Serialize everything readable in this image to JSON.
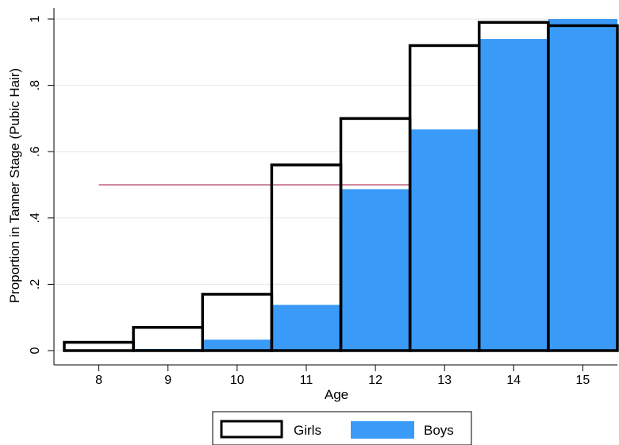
{
  "chart_data": {
    "type": "bar",
    "categories": [
      "8",
      "9",
      "10",
      "11",
      "12",
      "13",
      "14",
      "15"
    ],
    "series": [
      {
        "name": "Girls",
        "values": [
          0.025,
          0.07,
          0.17,
          0.56,
          0.7,
          0.92,
          0.99,
          0.98
        ],
        "style": "outline",
        "color": "#000000"
      },
      {
        "name": "Boys",
        "values": [
          0.0,
          0.005,
          0.033,
          0.138,
          0.487,
          0.667,
          0.94,
          1.0
        ],
        "style": "filled",
        "color": "#3a9af8"
      }
    ],
    "xlabel": "Age",
    "ylabel": "Proportion in Tanner Stage (Pubic Hair)",
    "ylim": [
      0,
      1
    ],
    "yticks": [
      0,
      0.2,
      0.4,
      0.6,
      0.8,
      1
    ],
    "ytick_labels": [
      "0",
      ".2",
      ".4",
      ".6",
      ".8",
      "1"
    ],
    "reference_line": {
      "y": 0.5,
      "x_from": "9",
      "x_to": "12",
      "color": "#c06080"
    },
    "grid": true,
    "legend_position": "bottom"
  }
}
